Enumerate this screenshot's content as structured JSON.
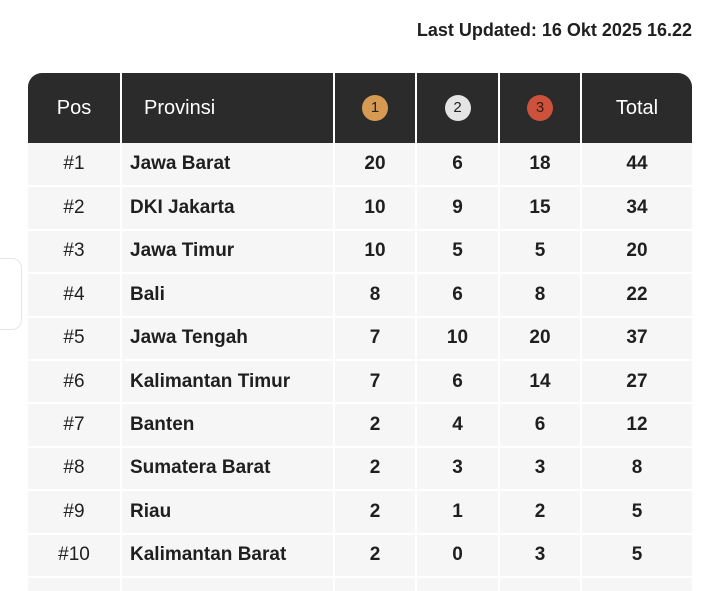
{
  "last_updated": "Last Updated: 16 Okt 2025 16.22",
  "table": {
    "headers": {
      "pos": "Pos",
      "provinsi": "Provinsi",
      "gold": "1",
      "silver": "2",
      "bronze": "3",
      "total": "Total"
    },
    "medal_colors": {
      "gold": "#d79a52",
      "silver": "#e4e4e4",
      "bronze": "#cc523b"
    },
    "rows": [
      {
        "pos": "#1",
        "provinsi": "Jawa Barat",
        "gold": "20",
        "silver": "6",
        "bronze": "18",
        "total": "44"
      },
      {
        "pos": "#2",
        "provinsi": "DKI Jakarta",
        "gold": "10",
        "silver": "9",
        "bronze": "15",
        "total": "34"
      },
      {
        "pos": "#3",
        "provinsi": "Jawa Timur",
        "gold": "10",
        "silver": "5",
        "bronze": "5",
        "total": "20"
      },
      {
        "pos": "#4",
        "provinsi": "Bali",
        "gold": "8",
        "silver": "6",
        "bronze": "8",
        "total": "22"
      },
      {
        "pos": "#5",
        "provinsi": "Jawa Tengah",
        "gold": "7",
        "silver": "10",
        "bronze": "20",
        "total": "37"
      },
      {
        "pos": "#6",
        "provinsi": "Kalimantan Timur",
        "gold": "7",
        "silver": "6",
        "bronze": "14",
        "total": "27"
      },
      {
        "pos": "#7",
        "provinsi": "Banten",
        "gold": "2",
        "silver": "4",
        "bronze": "6",
        "total": "12"
      },
      {
        "pos": "#8",
        "provinsi": "Sumatera Barat",
        "gold": "2",
        "silver": "3",
        "bronze": "3",
        "total": "8"
      },
      {
        "pos": "#9",
        "provinsi": "Riau",
        "gold": "2",
        "silver": "1",
        "bronze": "2",
        "total": "5"
      },
      {
        "pos": "#10",
        "provinsi": "Kalimantan Barat",
        "gold": "2",
        "silver": "0",
        "bronze": "3",
        "total": "5"
      }
    ]
  }
}
